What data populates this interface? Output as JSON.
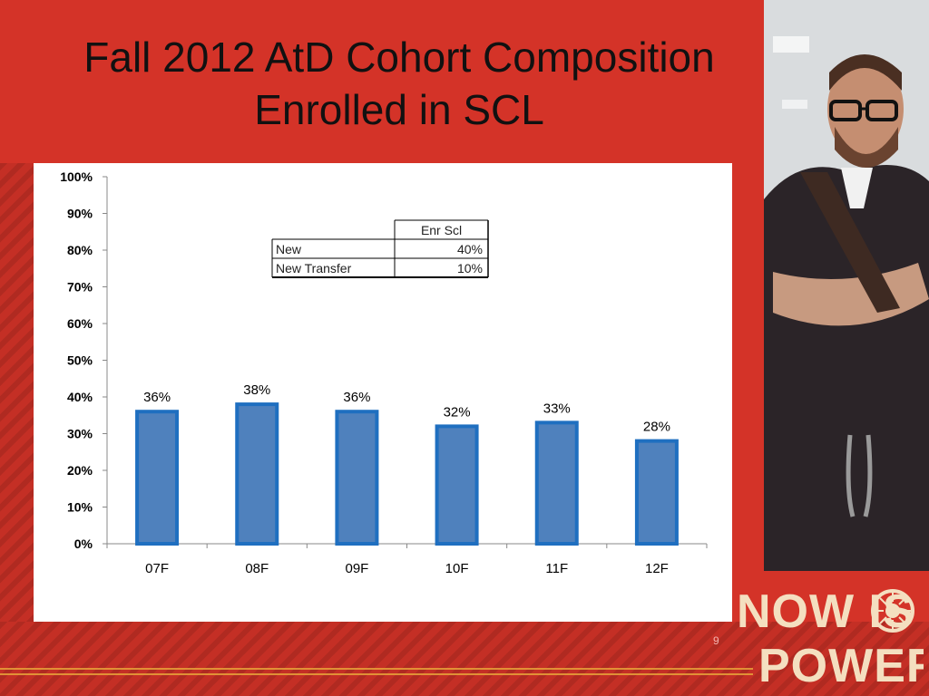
{
  "slide": {
    "title_line1": "Fall 2012 AtD Cohort Composition",
    "title_line2": "Enrolled in SCL",
    "page_number": "9",
    "logo_text_line1": "NOW IS",
    "logo_text_line2": "POWER",
    "background_color": "#d43328"
  },
  "chart_data": {
    "type": "bar",
    "categories": [
      "07F",
      "08F",
      "09F",
      "10F",
      "11F",
      "12F"
    ],
    "values": [
      36,
      38,
      36,
      32,
      33,
      28
    ],
    "data_labels": [
      "36%",
      "38%",
      "36%",
      "32%",
      "33%",
      "28%"
    ],
    "ylim": [
      0,
      100
    ],
    "yticks": [
      "0%",
      "10%",
      "20%",
      "30%",
      "40%",
      "50%",
      "60%",
      "70%",
      "80%",
      "90%",
      "100%"
    ],
    "bar_color": "#4f81bd",
    "bar_border_color": "#1f6fc0",
    "grid": false,
    "inset_table": {
      "header": [
        "",
        "Enr Scl"
      ],
      "rows": [
        [
          "New",
          "40%"
        ],
        [
          "New Transfer",
          "10%"
        ]
      ]
    }
  }
}
